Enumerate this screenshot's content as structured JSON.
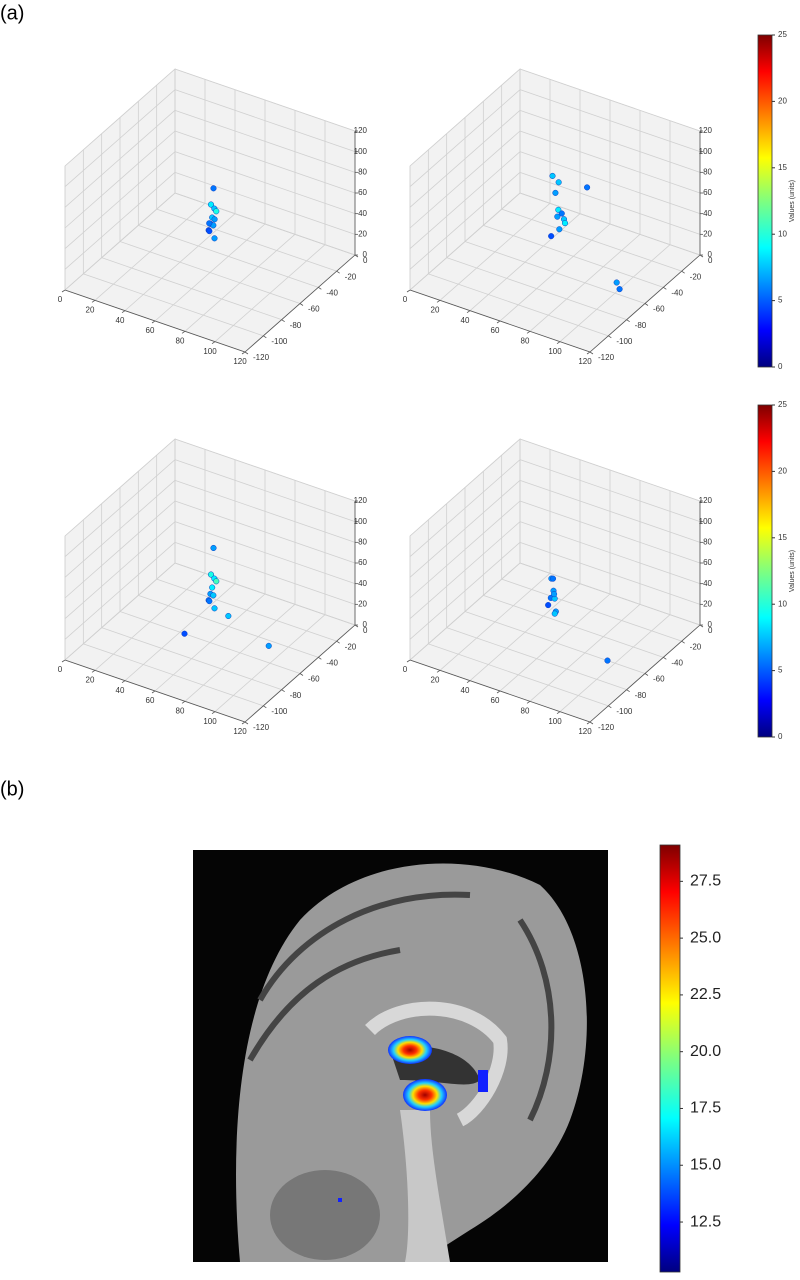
{
  "panel_labels": [
    "(a)",
    "(b)"
  ],
  "chart_data": [
    {
      "type": "scatter3d",
      "colormap": "jet",
      "clim": [
        0,
        25
      ],
      "grid": true,
      "xlim": [
        0,
        120
      ],
      "ylim": [
        -120,
        0
      ],
      "zlim": [
        0,
        120
      ],
      "xticks": [
        0,
        20,
        40,
        60,
        80,
        100,
        120
      ],
      "yticks": [
        0,
        -20,
        -40,
        -60,
        -80,
        -100,
        -120
      ],
      "zticks": [
        0,
        20,
        40,
        60,
        80,
        100,
        120
      ],
      "x": [
        45,
        48,
        42,
        50,
        46,
        44,
        52,
        47,
        55,
        40,
        49,
        43
      ],
      "y": [
        -35,
        -38,
        -32,
        -40,
        -36,
        -30,
        -42,
        -34,
        -45,
        -28,
        -37,
        -33
      ],
      "z": [
        20,
        30,
        10,
        25,
        40,
        50,
        15,
        35,
        45,
        5,
        28,
        18
      ],
      "values": [
        6,
        8,
        5,
        7,
        9,
        6,
        7,
        8,
        10,
        5,
        7,
        6
      ]
    },
    {
      "type": "scatter3d",
      "colormap": "jet",
      "clim": [
        0,
        25
      ],
      "grid": true,
      "xlim": [
        0,
        120
      ],
      "ylim": [
        -120,
        0
      ],
      "zlim": [
        0,
        120
      ],
      "xticks": [
        0,
        20,
        40,
        60,
        80,
        100,
        120
      ],
      "yticks": [
        0,
        -20,
        -40,
        -60,
        -80,
        -100,
        -120
      ],
      "zticks": [
        0,
        20,
        40,
        60,
        80,
        100,
        120
      ],
      "x": [
        40,
        45,
        50,
        48,
        42,
        55,
        60,
        44,
        100,
        95,
        38,
        52,
        47
      ],
      "y": [
        -30,
        -35,
        -40,
        -33,
        -28,
        -42,
        -25,
        -38,
        -55,
        -50,
        -20,
        -36,
        -34
      ],
      "z": [
        60,
        50,
        40,
        30,
        20,
        35,
        55,
        10,
        0,
        0,
        45,
        25,
        15
      ],
      "values": [
        8,
        7,
        9,
        6,
        7,
        8,
        6,
        5,
        6,
        7,
        8,
        9,
        7
      ]
    },
    {
      "type": "scatter3d",
      "colormap": "jet",
      "clim": [
        0,
        25
      ],
      "grid": true,
      "xlim": [
        0,
        120
      ],
      "ylim": [
        -120,
        0
      ],
      "zlim": [
        0,
        120
      ],
      "xticks": [
        0,
        20,
        40,
        60,
        80,
        100,
        120
      ],
      "yticks": [
        0,
        -20,
        -40,
        -60,
        -80,
        -100,
        -120
      ],
      "zticks": [
        0,
        20,
        40,
        60,
        80,
        100,
        120
      ],
      "x": [
        45,
        48,
        42,
        50,
        46,
        44,
        52,
        47,
        55,
        40,
        90,
        60,
        43
      ],
      "y": [
        -35,
        -38,
        -32,
        -40,
        -36,
        -30,
        -42,
        -34,
        -45,
        -28,
        -45,
        -40,
        -60
      ],
      "z": [
        20,
        30,
        10,
        25,
        40,
        60,
        15,
        35,
        45,
        5,
        0,
        10,
        0
      ],
      "values": [
        7,
        9,
        6,
        8,
        10,
        7,
        8,
        9,
        11,
        6,
        7,
        8,
        5
      ]
    },
    {
      "type": "scatter3d",
      "colormap": "jet",
      "clim": [
        0,
        25
      ],
      "grid": true,
      "xlim": [
        0,
        120
      ],
      "ylim": [
        -120,
        0
      ],
      "zlim": [
        0,
        120
      ],
      "xticks": [
        0,
        20,
        40,
        60,
        80,
        100,
        120
      ],
      "yticks": [
        0,
        -20,
        -40,
        -60,
        -80,
        -100,
        -120
      ],
      "zticks": [
        0,
        20,
        40,
        60,
        80,
        100,
        120
      ],
      "x": [
        45,
        48,
        42,
        50,
        46,
        44,
        52,
        47,
        95,
        49
      ],
      "y": [
        -40,
        -42,
        -38,
        -44,
        -41,
        -36,
        -46,
        -39,
        -60,
        -43
      ],
      "z": [
        20,
        30,
        10,
        25,
        40,
        35,
        15,
        5,
        0,
        28
      ],
      "values": [
        6,
        7,
        5,
        8,
        7,
        6,
        7,
        8,
        6,
        7
      ]
    }
  ],
  "colorbars": [
    {
      "label": "Values (units)",
      "colormap": "jet",
      "lim": [
        0,
        25
      ],
      "ticks": [
        0,
        5,
        10,
        15,
        20,
        25
      ]
    },
    {
      "label": "Values (units)",
      "colormap": "jet",
      "lim": [
        0,
        25
      ],
      "ticks": [
        0,
        5,
        10,
        15,
        20,
        25
      ]
    },
    {
      "colormap": "jet",
      "lim": [
        10.3,
        29.1
      ],
      "ticks": [
        12.5,
        15.0,
        17.5,
        20.0,
        22.5,
        25.0,
        27.5
      ]
    }
  ]
}
